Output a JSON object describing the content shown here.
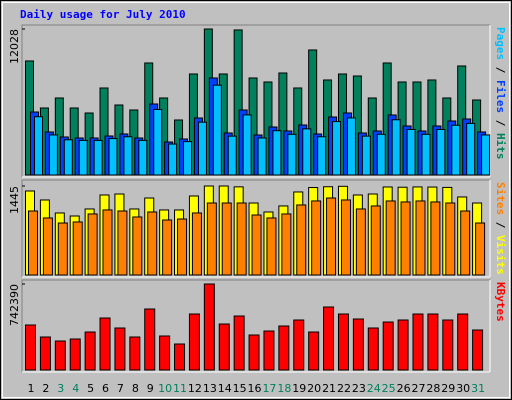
{
  "chart_data": [
    {
      "type": "bar",
      "title": "Daily usage for July 2010",
      "series": [
        {
          "name": "Hits",
          "color": "#00805c",
          "values": [
            9394,
            5521,
            6345,
            5521,
            5109,
            7169,
            5768,
            5356,
            9229,
            6345,
            4532,
            8322,
            12028,
            8322,
            11950,
            7993,
            7663,
            8405,
            7169,
            10300,
            7828,
            8322,
            8158,
            6345,
            9229,
            7663,
            7663,
            7828,
            6345,
            8982,
            6180
          ]
        },
        {
          "name": "Files",
          "color": "#0040ff",
          "values": [
            5191,
            3543,
            3131,
            3049,
            3049,
            3214,
            3378,
            3049,
            5850,
            2719,
            2966,
            4697,
            7993,
            3461,
            5356,
            3296,
            3955,
            3626,
            4120,
            3378,
            4779,
            5109,
            3461,
            3626,
            4944,
            4038,
            3626,
            4038,
            4450,
            4614,
            3543
          ]
        },
        {
          "name": "Pages",
          "color": "#00c0ff",
          "values": [
            4800,
            3300,
            2900,
            2850,
            2850,
            3000,
            3150,
            2850,
            5400,
            2550,
            2750,
            4350,
            7400,
            3200,
            4950,
            3050,
            3650,
            3350,
            3800,
            3150,
            4400,
            4700,
            3200,
            3350,
            4550,
            3750,
            3350,
            3750,
            4100,
            4250,
            3300
          ]
        }
      ],
      "ylim": [
        0,
        12028
      ],
      "yticks": [
        12028
      ]
    },
    {
      "type": "bar",
      "series": [
        {
          "name": "Visits",
          "color": "#ffff00",
          "values": [
            1364,
            1218,
            1007,
            958,
            1072,
            1299,
            1315,
            1072,
            1250,
            1056,
            1056,
            1283,
            1445,
            1445,
            1431,
            1169,
            1023,
            1121,
            1348,
            1420,
            1433,
            1440,
            1299,
            1315,
            1429,
            1425,
            1430,
            1428,
            1422,
            1267,
            1169
          ]
        },
        {
          "name": "Sites",
          "color": "#ff8000",
          "values": [
            1039,
            926,
            844,
            861,
            991,
            1056,
            1039,
            942,
            1023,
            893,
            909,
            1007,
            1169,
            1169,
            1169,
            974,
            926,
            991,
            1137,
            1202,
            1250,
            1218,
            1072,
            1121,
            1202,
            1186,
            1202,
            1186,
            1169,
            1039,
            844
          ]
        }
      ],
      "ylim": [
        0,
        1445
      ],
      "yticks": [
        1445
      ]
    },
    {
      "type": "bar",
      "categories": [
        "1",
        "2",
        "3",
        "4",
        "5",
        "6",
        "7",
        "8",
        "9",
        "10",
        "11",
        "12",
        "13",
        "14",
        "15",
        "16",
        "17",
        "18",
        "19",
        "20",
        "21",
        "22",
        "23",
        "24",
        "25",
        "26",
        "27",
        "28",
        "29",
        "30",
        "31"
      ],
      "category_colors": [
        "#000000",
        "#000000",
        "#00805c",
        "#00805c",
        "#000000",
        "#000000",
        "#000000",
        "#000000",
        "#000000",
        "#00805c",
        "#00805c",
        "#000000",
        "#000000",
        "#000000",
        "#000000",
        "#000000",
        "#00805c",
        "#00805c",
        "#000000",
        "#000000",
        "#000000",
        "#000000",
        "#000000",
        "#00805c",
        "#00805c",
        "#000000",
        "#000000",
        "#000000",
        "#000000",
        "#000000",
        "#00805c"
      ],
      "series": [
        {
          "name": "KBytes",
          "color": "#ff0000",
          "values": [
            388440,
            284856,
            250328,
            267592,
            328016,
            448864,
            362544,
            284856,
            526552,
            293488,
            224432,
            483392,
            742390,
            397072,
            466128,
            302120,
            336648,
            379808,
            431600,
            328016,
            543816,
            483392,
            440232,
            362544,
            414336,
            431600,
            483392,
            483392,
            431600,
            483392,
            345280
          ]
        }
      ],
      "ylim": [
        0,
        742390
      ],
      "yticks": [
        742390
      ]
    }
  ]
}
